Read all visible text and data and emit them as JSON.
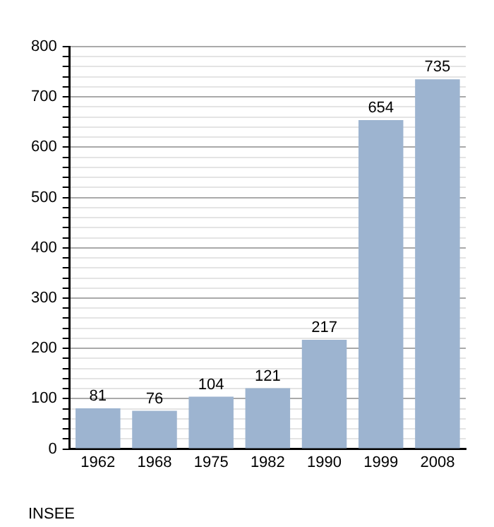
{
  "chart_data": {
    "type": "bar",
    "categories": [
      "1962",
      "1968",
      "1975",
      "1982",
      "1990",
      "1999",
      "2008"
    ],
    "values": [
      81,
      76,
      104,
      121,
      217,
      654,
      735
    ],
    "color": "#9db4d0",
    "data_labels": true,
    "ylim": [
      0,
      800
    ],
    "yticks": [
      0,
      {
        "value": 20,
        "label": null
      },
      {
        "value": 40,
        "label": null
      },
      {
        "value": 60,
        "label": null
      },
      {
        "value": 80,
        "label": null
      },
      100,
      {
        "value": 120,
        "label": null
      },
      {
        "value": 140,
        "label": null
      },
      {
        "value": 160,
        "label": null
      },
      {
        "value": 180,
        "label": null
      },
      200,
      {
        "value": 220,
        "label": null
      },
      {
        "value": 240,
        "label": null
      },
      {
        "value": 260,
        "label": null
      },
      {
        "value": 280,
        "label": null
      },
      300,
      {
        "value": 320,
        "label": null
      },
      {
        "value": 340,
        "label": null
      },
      {
        "value": 360,
        "label": null
      },
      {
        "value": 380,
        "label": null
      },
      400,
      {
        "value": 420,
        "label": null
      },
      {
        "value": 440,
        "label": null
      },
      {
        "value": 460,
        "label": null
      },
      {
        "value": 480,
        "label": null
      },
      500,
      {
        "value": 520,
        "label": null
      },
      {
        "value": 540,
        "label": null
      },
      {
        "value": 560,
        "label": null
      },
      {
        "value": 580,
        "label": null
      },
      600,
      {
        "value": 620,
        "label": null
      },
      {
        "value": 640,
        "label": null
      },
      {
        "value": 660,
        "label": null
      },
      {
        "value": 680,
        "label": null
      },
      700,
      {
        "value": 720,
        "label": null
      },
      {
        "value": 740,
        "label": null
      },
      {
        "value": 760,
        "label": null
      },
      {
        "value": 780,
        "label": null
      },
      800
    ],
    "grid": "y",
    "annotations": [
      "INSEE"
    ]
  }
}
